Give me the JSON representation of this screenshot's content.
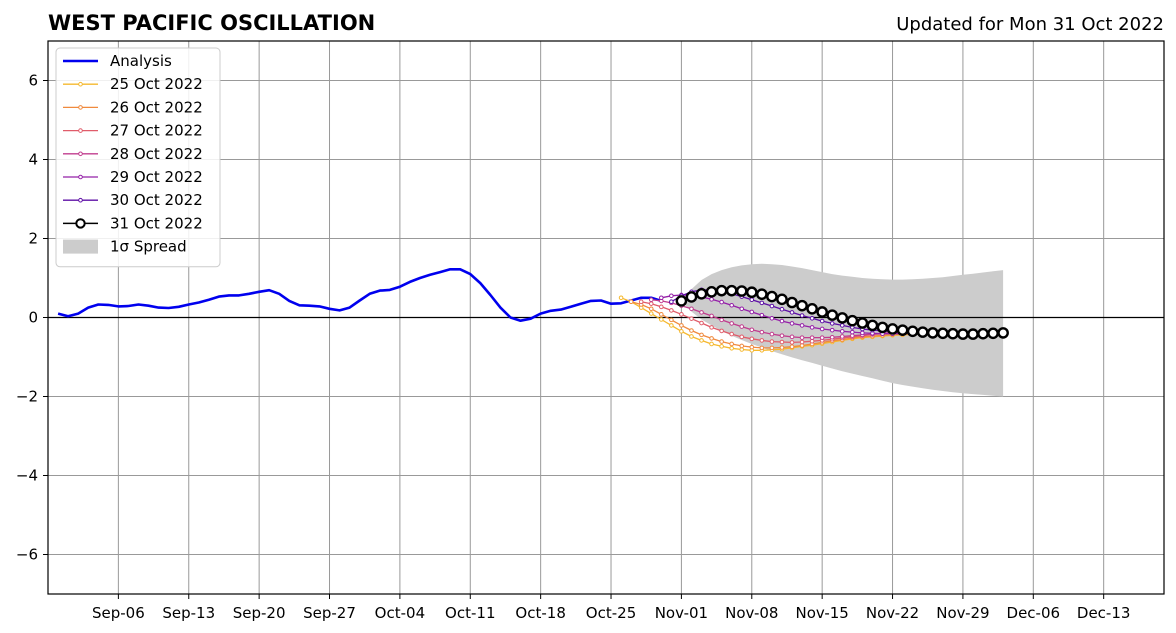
{
  "chart_data": {
    "type": "line",
    "title": "WEST PACIFIC OSCILLATION",
    "subtitle": "Updated for Mon 31 Oct 2022",
    "xlabel": "",
    "ylabel": "",
    "x_range": [
      "2022-08-30",
      "2022-12-19"
    ],
    "ylim": [
      -7,
      7
    ],
    "grid": true,
    "legend_position": "top-left",
    "x_tick_labels": [
      "Sep-06",
      "Sep-13",
      "Sep-20",
      "Sep-27",
      "Oct-04",
      "Oct-11",
      "Oct-18",
      "Oct-25",
      "Nov-01",
      "Nov-08",
      "Nov-15",
      "Nov-22",
      "Nov-29",
      "Dec-06",
      "Dec-13"
    ],
    "y_ticks": [
      -6,
      -4,
      -2,
      0,
      2,
      4,
      6
    ],
    "y_tick_labels": [
      "−6",
      "−4",
      "−2",
      "0",
      "2",
      "4",
      "6"
    ],
    "series": [
      {
        "name": "Analysis",
        "color": "#0000ee",
        "start": "2022-08-31",
        "values": [
          0.1,
          0.03,
          0.1,
          0.25,
          0.33,
          0.32,
          0.28,
          0.29,
          0.33,
          0.3,
          0.25,
          0.24,
          0.27,
          0.33,
          0.38,
          0.45,
          0.53,
          0.56,
          0.56,
          0.6,
          0.65,
          0.69,
          0.6,
          0.42,
          0.31,
          0.3,
          0.28,
          0.22,
          0.18,
          0.25,
          0.43,
          0.6,
          0.68,
          0.7,
          0.78,
          0.9,
          1.0,
          1.08,
          1.15,
          1.22,
          1.22,
          1.1,
          0.87,
          0.57,
          0.25,
          0.0,
          -0.08,
          -0.03,
          0.1,
          0.17,
          0.2,
          0.27,
          0.35,
          0.42,
          0.43,
          0.35,
          0.36,
          0.43,
          0.5,
          0.5,
          0.42
        ]
      },
      {
        "name": "25 Oct 2022",
        "color": "#f5b82e",
        "start": "2022-10-26",
        "values": [
          0.5,
          0.4,
          0.25,
          0.1,
          -0.05,
          -0.2,
          -0.35,
          -0.48,
          -0.58,
          -0.67,
          -0.73,
          -0.78,
          -0.81,
          -0.83,
          -0.83,
          -0.82,
          -0.8,
          -0.77,
          -0.73,
          -0.7,
          -0.66,
          -0.62,
          -0.58,
          -0.54,
          -0.51,
          -0.49,
          -0.47,
          -0.45,
          -0.44,
          -0.43
        ]
      },
      {
        "name": "26 Oct 2022",
        "color": "#f08a3e",
        "start": "2022-10-27",
        "values": [
          0.4,
          0.33,
          0.22,
          0.08,
          -0.06,
          -0.2,
          -0.33,
          -0.44,
          -0.53,
          -0.61,
          -0.67,
          -0.72,
          -0.75,
          -0.77,
          -0.77,
          -0.76,
          -0.74,
          -0.71,
          -0.67,
          -0.63,
          -0.59,
          -0.56,
          -0.52,
          -0.49,
          -0.47,
          -0.45,
          -0.43,
          -0.42,
          -0.41
        ]
      },
      {
        "name": "27 Oct 2022",
        "color": "#e05c6a",
        "start": "2022-10-28",
        "values": [
          0.4,
          0.35,
          0.27,
          0.18,
          0.08,
          -0.03,
          -0.14,
          -0.25,
          -0.34,
          -0.42,
          -0.49,
          -0.54,
          -0.58,
          -0.61,
          -0.62,
          -0.63,
          -0.62,
          -0.6,
          -0.58,
          -0.55,
          -0.52,
          -0.49,
          -0.46,
          -0.43,
          -0.41,
          -0.39,
          -0.38,
          -0.37
        ]
      },
      {
        "name": "28 Oct 2022",
        "color": "#c13d8e",
        "start": "2022-10-29",
        "values": [
          0.45,
          0.42,
          0.37,
          0.3,
          0.22,
          0.13,
          0.04,
          -0.06,
          -0.15,
          -0.23,
          -0.31,
          -0.37,
          -0.42,
          -0.46,
          -0.49,
          -0.51,
          -0.51,
          -0.51,
          -0.5,
          -0.48,
          -0.46,
          -0.44,
          -0.42,
          -0.4,
          -0.38,
          -0.37,
          -0.36
        ]
      },
      {
        "name": "29 Oct 2022",
        "color": "#9520a8",
        "start": "2022-10-30",
        "values": [
          0.5,
          0.55,
          0.57,
          0.56,
          0.52,
          0.46,
          0.39,
          0.31,
          0.22,
          0.14,
          0.06,
          -0.02,
          -0.09,
          -0.15,
          -0.2,
          -0.25,
          -0.29,
          -0.32,
          -0.35,
          -0.37,
          -0.39,
          -0.4,
          -0.41,
          -0.41,
          -0.41,
          -0.4
        ]
      },
      {
        "name": "30 Oct 2022",
        "color": "#5e0fa6",
        "start": "2022-10-31",
        "values": [
          0.4,
          0.55,
          0.65,
          0.7,
          0.7,
          0.66,
          0.6,
          0.53,
          0.45,
          0.37,
          0.29,
          0.21,
          0.13,
          0.05,
          -0.02,
          -0.09,
          -0.15,
          -0.2,
          -0.25,
          -0.29,
          -0.32,
          -0.34,
          -0.36,
          -0.37,
          -0.38
        ]
      },
      {
        "name": "31 Oct 2022",
        "color": "#000000",
        "marker": "open-circle",
        "start": "2022-11-01",
        "values": [
          0.42,
          0.52,
          0.6,
          0.65,
          0.68,
          0.68,
          0.67,
          0.64,
          0.59,
          0.53,
          0.46,
          0.38,
          0.3,
          0.22,
          0.14,
          0.06,
          -0.01,
          -0.08,
          -0.14,
          -0.2,
          -0.25,
          -0.29,
          -0.32,
          -0.35,
          -0.37,
          -0.39,
          -0.4,
          -0.41,
          -0.42,
          -0.42,
          -0.41,
          -0.4,
          -0.39
        ]
      }
    ],
    "spread": {
      "name": "1σ Spread",
      "color": "#cccccc",
      "start": "2022-11-01",
      "upper": [
        0.42,
        0.72,
        0.95,
        1.1,
        1.2,
        1.27,
        1.32,
        1.35,
        1.36,
        1.35,
        1.33,
        1.29,
        1.25,
        1.2,
        1.15,
        1.1,
        1.06,
        1.03,
        1.0,
        0.98,
        0.97,
        0.96,
        0.96,
        0.97,
        0.98,
        1.0,
        1.02,
        1.05,
        1.08,
        1.11,
        1.14,
        1.17,
        1.2
      ],
      "lower": [
        0.42,
        0.15,
        -0.05,
        -0.2,
        -0.34,
        -0.46,
        -0.57,
        -0.67,
        -0.76,
        -0.85,
        -0.93,
        -1.01,
        -1.08,
        -1.15,
        -1.22,
        -1.29,
        -1.36,
        -1.42,
        -1.48,
        -1.54,
        -1.6,
        -1.66,
        -1.71,
        -1.75,
        -1.79,
        -1.83,
        -1.86,
        -1.89,
        -1.92,
        -1.94,
        -1.96,
        -1.98,
        -2.0
      ]
    }
  }
}
